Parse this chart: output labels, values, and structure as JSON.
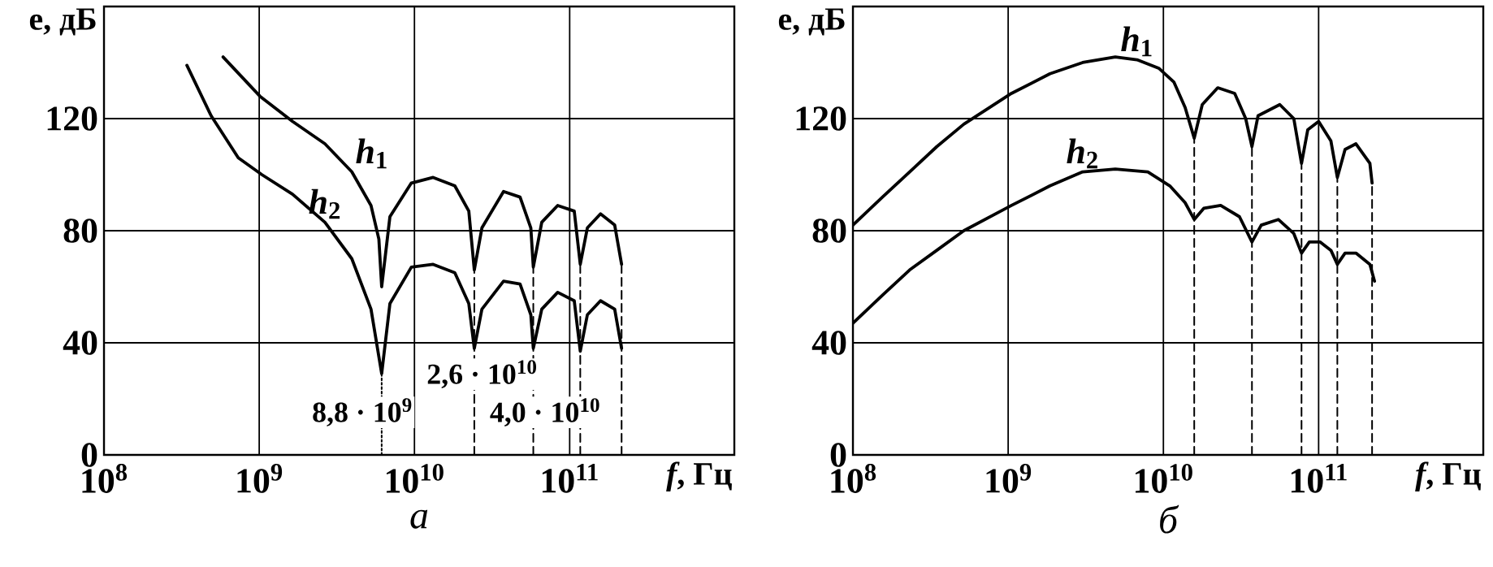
{
  "chart_data": [
    {
      "type": "line",
      "title": "а",
      "xlabel": "*f*, Гц",
      "ylabel": "e, дБ",
      "log": "x",
      "grid": true,
      "xlim": [
        100000000.0,
        1150000000000.0
      ],
      "ylim": [
        0,
        160
      ],
      "xticks": [
        {
          "value": 100000000.0,
          "label": "10$^{8}$"
        },
        {
          "value": 1000000000.0,
          "label": "10$^{9}$"
        },
        {
          "value": 10000000000.0,
          "label": "10$^{10}$"
        },
        {
          "value": 100000000000.0,
          "label": "10$^{11}$"
        }
      ],
      "yticks": [
        0,
        40,
        80,
        120
      ],
      "annotations": [
        "8,8 · 10$^{9}$",
        "2,6 · 10$^{10}$",
        "4,0 · 10$^{10}$"
      ],
      "series": [
        {
          "name": "*h*$_{1}$",
          "color": "#000000",
          "line_style": "solid",
          "x": [
            585000000.0,
            1010000000.0,
            1640000000.0,
            2650000000.0,
            3950000000.0,
            5250000000.0,
            5900000000.0,
            6150000000.0,
            6950000000.0,
            9550000000.0,
            13200000000.0,
            18200000000.0,
            22400000000.0,
            24300000000.0,
            27200000000.0,
            37500000000.0,
            47900000000.0,
            56200000000.0,
            58300000000.0,
            66100000000.0,
            83700000000.0,
            107000000000.0,
            117000000000.0,
            130000000000.0,
            158000000000.0,
            195000000000.0,
            216000000000.0
          ],
          "values": [
            142,
            128,
            119,
            111,
            101,
            89,
            77,
            60,
            85,
            97,
            99,
            96,
            87,
            66,
            81,
            94,
            92,
            81,
            67,
            83,
            89,
            87,
            68,
            81,
            86,
            82,
            68
          ]
        },
        {
          "name": "*h*$_{2}$",
          "color": "#000000",
          "line_style": "solid",
          "x": [
            342000000.0,
            490000000.0,
            733000000.0,
            1040000000.0,
            1640000000.0,
            2650000000.0,
            3950000000.0,
            5250000000.0,
            6150000000.0,
            6950000000.0,
            9550000000.0,
            13200000000.0,
            18200000000.0,
            22400000000.0,
            24300000000.0,
            27200000000.0,
            37500000000.0,
            47900000000.0,
            56200000000.0,
            58300000000.0,
            66100000000.0,
            83700000000.0,
            107000000000.0,
            117000000000.0,
            130000000000.0,
            158000000000.0,
            195000000000.0,
            216000000000.0
          ],
          "values": [
            139,
            121,
            106,
            100,
            93,
            83,
            70,
            52,
            29,
            54,
            67,
            68,
            65,
            54,
            38,
            52,
            62,
            61,
            50,
            38,
            52,
            58,
            55,
            37,
            50,
            55,
            52,
            38
          ]
        },
        {
          "color": "#000000",
          "line_style": "dotted",
          "x": [
            6150000000.0,
            6150000000.0
          ],
          "values": [
            0,
            29
          ]
        },
        {
          "color": "#000000",
          "line_style": "dashed",
          "x": [
            24300000000.0,
            24300000000.0
          ],
          "values": [
            0,
            66
          ]
        },
        {
          "color": "#000000",
          "line_style": "dashed",
          "x": [
            58300000000.0,
            58300000000.0
          ],
          "values": [
            0,
            67
          ]
        },
        {
          "color": "#000000",
          "line_style": "dashed",
          "x": [
            117000000000.0,
            117000000000.0
          ],
          "values": [
            0,
            68
          ]
        },
        {
          "color": "#000000",
          "line_style": "dashed",
          "x": [
            216000000000.0,
            216000000000.0
          ],
          "values": [
            0,
            68
          ]
        }
      ]
    },
    {
      "type": "line",
      "title": "б",
      "xlabel": "*f*, Гц",
      "ylabel": "e, дБ",
      "log": "x",
      "grid": true,
      "xlim": [
        100000000.0,
        1150000000000.0
      ],
      "ylim": [
        0,
        160
      ],
      "xticks": [
        {
          "value": 100000000.0,
          "label": "10$^{8}$"
        },
        {
          "value": 1000000000.0,
          "label": "10$^{9}$"
        },
        {
          "value": 10000000000.0,
          "label": "10$^{10}$"
        },
        {
          "value": 100000000000.0,
          "label": "10$^{11}$"
        }
      ],
      "yticks": [
        0,
        40,
        80,
        120
      ],
      "series": [
        {
          "name": "*h*$_{1}$",
          "color": "#000000",
          "line_style": "solid",
          "x": [
            100000000.0,
            155000000.0,
            232000000.0,
            347000000.0,
            518000000.0,
            1050000000.0,
            1860000000.0,
            3020000000.0,
            4900000000.0,
            6760000000.0,
            9330000000.0,
            11700000000.0,
            13800000000.0,
            15800000000.0,
            17800000000.0,
            22400000000.0,
            28800000000.0,
            33900000000.0,
            37200000000.0,
            40700000000.0,
            56200000000.0,
            69200000000.0,
            77600000000.0,
            85100000000.0,
            100000000000.0,
            120000000000.0,
            132000000000.0,
            148000000000.0,
            174000000000.0,
            214000000000.0,
            221000000000.0
          ],
          "values": [
            82,
            92,
            101,
            110,
            118,
            129,
            136,
            140,
            142,
            141,
            138,
            133,
            124,
            113,
            125,
            131,
            129,
            120,
            110,
            121,
            125,
            120,
            104,
            116,
            119,
            112,
            99,
            109,
            111,
            104,
            97
          ]
        },
        {
          "name": "*h*$_{2}$",
          "color": "#000000",
          "line_style": "solid",
          "x": [
            100000000.0,
            155000000.0,
            232000000.0,
            347000000.0,
            518000000.0,
            1050000000.0,
            1860000000.0,
            3020000000.0,
            4900000000.0,
            7940000000.0,
            11000000000.0,
            13800000000.0,
            15800000000.0,
            18200000000.0,
            23400000000.0,
            30900000000.0,
            37200000000.0,
            42700000000.0,
            55000000000.0,
            69200000000.0,
            77600000000.0,
            87100000000.0,
            102000000000.0,
            120000000000.0,
            132000000000.0,
            148000000000.0,
            174000000000.0,
            214000000000.0,
            229000000000.0
          ],
          "values": [
            47,
            57,
            66,
            73,
            80,
            89,
            96,
            101,
            102,
            101,
            96,
            90,
            84,
            88,
            89,
            85,
            76,
            82,
            84,
            79,
            72,
            76,
            76,
            73,
            68,
            72,
            72,
            68,
            62
          ]
        },
        {
          "color": "#000000",
          "line_style": "dashed",
          "x": [
            15800000000.0,
            15800000000.0
          ],
          "values": [
            0,
            113
          ]
        },
        {
          "color": "#000000",
          "line_style": "dashed",
          "x": [
            37200000000.0,
            37200000000.0
          ],
          "values": [
            0,
            110
          ]
        },
        {
          "color": "#000000",
          "line_style": "dashed",
          "x": [
            77600000000.0,
            77600000000.0
          ],
          "values": [
            0,
            104
          ]
        },
        {
          "color": "#000000",
          "line_style": "dashed",
          "x": [
            132000000000.0,
            132000000000.0
          ],
          "values": [
            0,
            99
          ]
        },
        {
          "color": "#000000",
          "line_style": "dashed",
          "x": [
            221000000000.0,
            221000000000.0
          ],
          "values": [
            0,
            97
          ]
        }
      ]
    }
  ]
}
